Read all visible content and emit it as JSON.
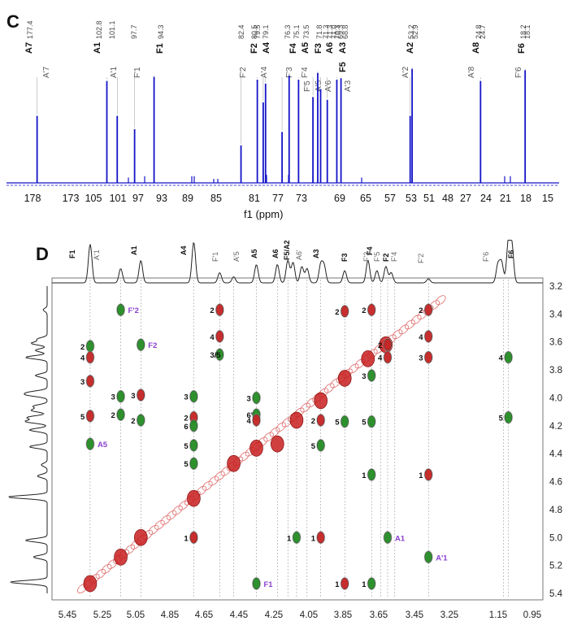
{
  "colors": {
    "spectrum": "#1414c8",
    "baseline_dash": "#1414c8",
    "negative_peak": "#c81e1e",
    "positive_peak": "#1e8c1e",
    "diag": "#e06a6a",
    "highlight_label": "#8a3fd1",
    "proj_trace": "#222222"
  },
  "chart_data": [
    {
      "type": "line",
      "panel": "C",
      "xlabel": "f1 (ppm)",
      "x_tick_labels": [
        "178",
        "173",
        "105",
        "101",
        "97",
        "93",
        "89",
        "85",
        "81",
        "77",
        "73",
        "69",
        "65",
        "57",
        "53",
        "51",
        "48",
        "27",
        "24",
        "21",
        "18",
        "15"
      ],
      "peak_values": [
        "177.4",
        "102.8",
        "101.1",
        "97.7",
        "94.3",
        "82.4",
        "80.5",
        "79.5",
        "79.1",
        "76.3",
        "75.1",
        "73.5",
        "71.8",
        "71.3",
        "71.3",
        "71.0",
        "70.3",
        "69.3",
        "68.8",
        "53.2",
        "52.9",
        "24.8",
        "24.7",
        "18.2",
        "18.1"
      ],
      "assignments": [
        "A7",
        "A1",
        "F1",
        "F2",
        "A4",
        "F4",
        "A5",
        "F3",
        "A6",
        "A3",
        "F5",
        "A2",
        "A8",
        "F6"
      ],
      "assignments_primed": [
        "A'7",
        "A'1",
        "F'1",
        "F'2",
        "A'4",
        "F'3",
        "F'4",
        "F'5",
        "A'5",
        "A'6",
        "A'3",
        "A'2",
        "A'8",
        "F'6"
      ],
      "peaks": [
        {
          "ppm": 177.4,
          "h": 0.5
        },
        {
          "ppm": 102.8,
          "h": 0.76
        },
        {
          "ppm": 101.1,
          "h": 0.5
        },
        {
          "ppm": 97.7,
          "h": 0.4
        },
        {
          "ppm": 94.3,
          "h": 0.79
        },
        {
          "ppm": 82.4,
          "h": 0.28
        },
        {
          "ppm": 80.5,
          "h": 0.77
        },
        {
          "ppm": 79.5,
          "h": 0.6
        },
        {
          "ppm": 79.1,
          "h": 0.74
        },
        {
          "ppm": 76.3,
          "h": 0.38
        },
        {
          "ppm": 75.1,
          "h": 0.8
        },
        {
          "ppm": 73.5,
          "h": 0.77
        },
        {
          "ppm": 71.8,
          "h": 0.64
        },
        {
          "ppm": 71.3,
          "h": 0.82
        },
        {
          "ppm": 71.0,
          "h": 0.7
        },
        {
          "ppm": 70.3,
          "h": 0.62
        },
        {
          "ppm": 69.3,
          "h": 0.77
        },
        {
          "ppm": 68.8,
          "h": 0.78
        },
        {
          "ppm": 53.2,
          "h": 0.5
        },
        {
          "ppm": 52.9,
          "h": 0.85
        },
        {
          "ppm": 24.8,
          "h": 0.76
        },
        {
          "ppm": 18.1,
          "h": 0.84
        }
      ]
    },
    {
      "type": "scatter",
      "panel": "D",
      "x_tick_labels": [
        "5.45",
        "5.25",
        "5.05",
        "4.85",
        "4.65",
        "4.45",
        "4.25",
        "4.05",
        "3.85",
        "3.65",
        "3.45",
        "3.25",
        "1.15",
        "0.95"
      ],
      "y_tick_labels": [
        "3.2",
        "3.4",
        "3.6",
        "3.8",
        "4.0",
        "4.2",
        "4.4",
        "4.6",
        "4.8",
        "5.0",
        "5.2",
        "5.4"
      ],
      "ylim": [
        3.2,
        5.4
      ],
      "top_labels": [
        "F1",
        "A'1",
        "A1",
        "A4",
        "F'1",
        "A'5",
        "A5",
        "A6",
        "F5/A2",
        "A6'",
        "A3",
        "F3",
        "F4",
        "F'3",
        "F'5",
        "F2",
        "F'4",
        "F'2",
        "F'6",
        "F6"
      ],
      "cross_peaks": [
        {
          "x": 5.32,
          "y": 3.63,
          "c": "green",
          "label": "2"
        },
        {
          "x": 5.32,
          "y": 3.71,
          "c": "red",
          "label": "4"
        },
        {
          "x": 5.32,
          "y": 3.88,
          "c": "red",
          "label": "3"
        },
        {
          "x": 5.32,
          "y": 4.13,
          "c": "red",
          "label": "5"
        },
        {
          "x": 5.32,
          "y": 4.33,
          "c": "green",
          "label": "A5"
        },
        {
          "x": 5.02,
          "y": 3.62,
          "c": "green",
          "label": "F2"
        },
        {
          "x": 5.02,
          "y": 3.98,
          "c": "red",
          "label": "3"
        },
        {
          "x": 5.02,
          "y": 4.16,
          "c": "green",
          "label": "2"
        },
        {
          "x": 5.14,
          "y": 3.99,
          "c": "green",
          "label": "3"
        },
        {
          "x": 5.14,
          "y": 4.12,
          "c": "green",
          "label": "2"
        },
        {
          "x": 5.14,
          "y": 3.37,
          "c": "green",
          "label": "F'2"
        },
        {
          "x": 4.71,
          "y": 3.99,
          "c": "green",
          "label": "3"
        },
        {
          "x": 4.71,
          "y": 4.14,
          "c": "red",
          "label": "2"
        },
        {
          "x": 4.71,
          "y": 4.2,
          "c": "green",
          "label": "6"
        },
        {
          "x": 4.71,
          "y": 4.34,
          "c": "green",
          "label": "5"
        },
        {
          "x": 4.71,
          "y": 4.47,
          "c": "green",
          "label": "5"
        },
        {
          "x": 4.71,
          "y": 5.0,
          "c": "red",
          "label": "1"
        },
        {
          "x": 4.56,
          "y": 3.37,
          "c": "red",
          "label": "2"
        },
        {
          "x": 4.56,
          "y": 3.56,
          "c": "red",
          "label": "4"
        },
        {
          "x": 4.56,
          "y": 3.69,
          "c": "green",
          "label": "3/5"
        },
        {
          "x": 4.35,
          "y": 4.0,
          "c": "green",
          "label": "3"
        },
        {
          "x": 4.35,
          "y": 4.12,
          "c": "green",
          "label": "6'"
        },
        {
          "x": 4.35,
          "y": 4.16,
          "c": "red",
          "label": "4"
        },
        {
          "x": 4.35,
          "y": 5.33,
          "c": "green",
          "label": "F1"
        },
        {
          "x": 4.12,
          "y": 5.0,
          "c": "green",
          "label": "1"
        },
        {
          "x": 3.98,
          "y": 5.0,
          "c": "red",
          "label": "1"
        },
        {
          "x": 3.98,
          "y": 4.16,
          "c": "red",
          "label": "2"
        },
        {
          "x": 3.98,
          "y": 4.34,
          "c": "green",
          "label": "5"
        },
        {
          "x": 3.84,
          "y": 5.33,
          "c": "red",
          "label": "1"
        },
        {
          "x": 3.84,
          "y": 4.17,
          "c": "green",
          "label": "5"
        },
        {
          "x": 3.84,
          "y": 3.38,
          "c": "red",
          "label": "2"
        },
        {
          "x": 3.69,
          "y": 3.37,
          "c": "red",
          "label": "2"
        },
        {
          "x": 3.69,
          "y": 3.84,
          "c": "green",
          "label": "3"
        },
        {
          "x": 3.69,
          "y": 4.17,
          "c": "green",
          "label": "5"
        },
        {
          "x": 3.69,
          "y": 4.55,
          "c": "green",
          "label": "1"
        },
        {
          "x": 3.69,
          "y": 5.33,
          "c": "green",
          "label": "1"
        },
        {
          "x": 3.6,
          "y": 5.0,
          "c": "green",
          "label": "A1"
        },
        {
          "x": 3.6,
          "y": 3.62,
          "c": "red",
          "label": "2"
        },
        {
          "x": 3.6,
          "y": 3.71,
          "c": "red",
          "label": "4"
        },
        {
          "x": 3.37,
          "y": 3.37,
          "c": "red",
          "label": "2"
        },
        {
          "x": 3.37,
          "y": 3.56,
          "c": "red",
          "label": "4"
        },
        {
          "x": 3.37,
          "y": 3.71,
          "c": "red",
          "label": "3"
        },
        {
          "x": 3.37,
          "y": 4.55,
          "c": "red",
          "label": "1"
        },
        {
          "x": 3.37,
          "y": 5.14,
          "c": "green",
          "label": "A'1"
        },
        {
          "x": 1.09,
          "y": 3.71,
          "c": "green",
          "label": "4"
        },
        {
          "x": 1.09,
          "y": 4.14,
          "c": "green",
          "label": "5"
        }
      ]
    }
  ],
  "panel_c": {
    "letter": "C",
    "xlabel": "f1 (ppm)"
  },
  "panel_d": {
    "letter": "D"
  }
}
